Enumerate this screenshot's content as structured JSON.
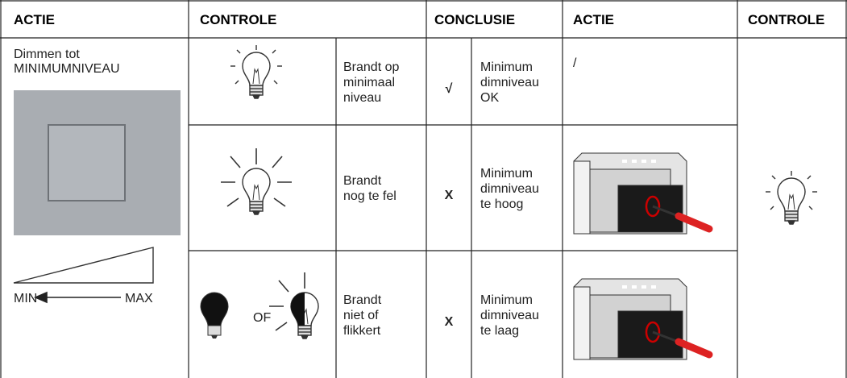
{
  "header": [
    "ACTIE",
    "CONTROLE",
    "CONCLUSIE",
    "ACTIE",
    "CONTROLE"
  ],
  "instruction": {
    "lines": [
      "Dimmen tot",
      "MINIMUMNIVEAU"
    ],
    "min": "MIN",
    "max": "MAX"
  },
  "rows": [
    {
      "control": [
        "Brandt op",
        "minimaal",
        "niveau"
      ],
      "symbol": "√",
      "conclusion": [
        "Minimum",
        "dimniveau",
        "OK"
      ],
      "action": "/"
    },
    {
      "control": [
        "Brandt",
        "nog te fel"
      ],
      "symbol": "X",
      "conclusion": [
        "Minimum",
        "dimniveau",
        "te hoog"
      ]
    },
    {
      "or": "OF",
      "control": [
        "Brandt",
        "niet of",
        "flikkert"
      ],
      "symbol": "X",
      "conclusion": [
        "Minimum",
        "dimniveau",
        "te laag"
      ]
    }
  ]
}
